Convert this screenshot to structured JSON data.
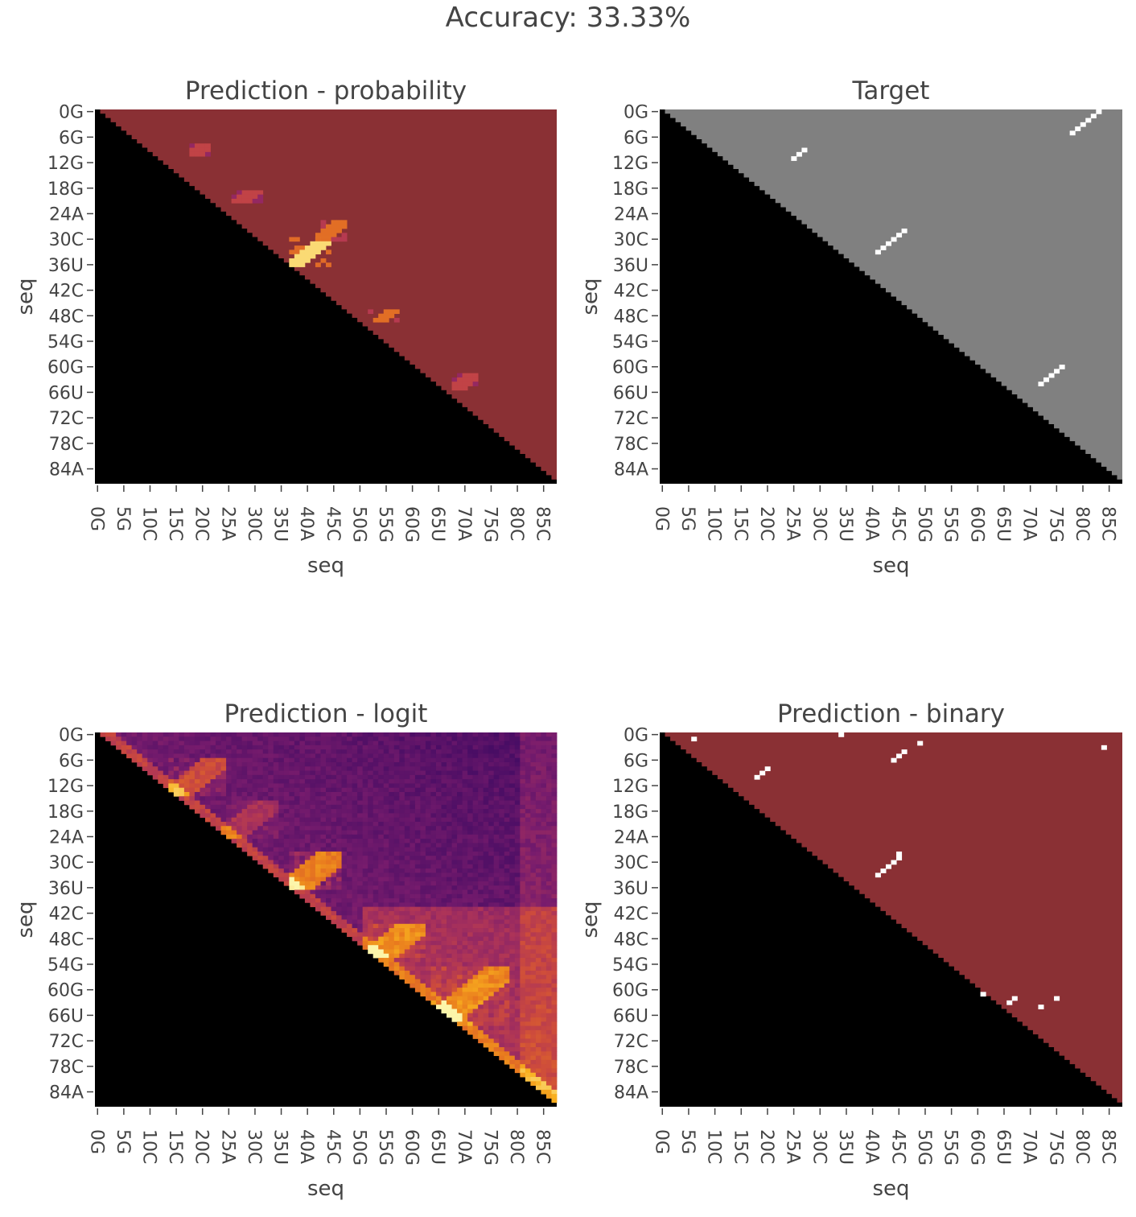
{
  "title": "Accuracy: 33.33%",
  "chart_data": [
    {
      "type": "heatmap",
      "title": "Prediction - probability",
      "xlabel": "seq",
      "ylabel": "seq",
      "matrix_size": 88,
      "lower_triangle": "masked (black)",
      "colorscale": "inferno-like (dark red background, yellow-white high values)",
      "background_color": "#8a3034",
      "x_ticks": [
        "0G",
        "5G",
        "10C",
        "15C",
        "20C",
        "25A",
        "30C",
        "35U",
        "40A",
        "45C",
        "50G",
        "55G",
        "60G",
        "65U",
        "70A",
        "75G",
        "80C",
        "85C"
      ],
      "y_ticks": [
        "0G",
        "6G",
        "12G",
        "18G",
        "24A",
        "30C",
        "36U",
        "42C",
        "48C",
        "54G",
        "60G",
        "66U",
        "72C",
        "78C",
        "84A"
      ],
      "highlights": [
        {
          "rows": [
            30,
            36
          ],
          "cols": [
            37,
            44
          ],
          "intensity": "high"
        },
        {
          "rows": [
            26,
            30
          ],
          "cols": [
            42,
            47
          ],
          "intensity": "medium"
        },
        {
          "rows": [
            47,
            49
          ],
          "cols": [
            52,
            58
          ],
          "intensity": "medium"
        },
        {
          "rows": [
            8,
            10
          ],
          "cols": [
            18,
            21
          ],
          "intensity": "low"
        },
        {
          "rows": [
            19,
            21
          ],
          "cols": [
            26,
            31
          ],
          "intensity": "low"
        },
        {
          "rows": [
            62,
            65
          ],
          "cols": [
            68,
            72
          ],
          "intensity": "low"
        }
      ]
    },
    {
      "type": "heatmap",
      "title": "Target",
      "xlabel": "seq",
      "ylabel": "seq",
      "matrix_size": 88,
      "lower_triangle": "masked (black)",
      "colorscale": "binary (grey background, white pairs)",
      "background_color": "#808080",
      "x_ticks": [
        "0G",
        "5G",
        "10C",
        "15C",
        "20C",
        "25A",
        "30C",
        "35U",
        "40A",
        "45C",
        "50G",
        "55G",
        "60G",
        "65U",
        "70A",
        "75G",
        "80C",
        "85C"
      ],
      "y_ticks": [
        "0G",
        "6G",
        "12G",
        "18G",
        "24A",
        "30C",
        "36U",
        "42C",
        "48C",
        "54G",
        "60G",
        "66U",
        "72C",
        "78C",
        "84A"
      ],
      "pairs": [
        [
          0,
          83
        ],
        [
          1,
          82
        ],
        [
          2,
          81
        ],
        [
          3,
          80
        ],
        [
          4,
          79
        ],
        [
          5,
          78
        ],
        [
          9,
          27
        ],
        [
          10,
          26
        ],
        [
          11,
          25
        ],
        [
          28,
          46
        ],
        [
          29,
          45
        ],
        [
          30,
          44
        ],
        [
          31,
          43
        ],
        [
          32,
          42
        ],
        [
          33,
          41
        ],
        [
          60,
          76
        ],
        [
          61,
          75
        ],
        [
          62,
          74
        ],
        [
          63,
          73
        ],
        [
          64,
          72
        ]
      ]
    },
    {
      "type": "heatmap",
      "title": "Prediction - logit",
      "xlabel": "seq",
      "ylabel": "seq",
      "matrix_size": 88,
      "lower_triangle": "masked (black)",
      "colorscale": "inferno-like (purple low, orange/yellow high)",
      "x_ticks": [
        "0G",
        "5G",
        "10C",
        "15C",
        "20C",
        "25A",
        "30C",
        "35U",
        "40A",
        "45C",
        "50G",
        "55G",
        "60G",
        "65U",
        "70A",
        "75G",
        "80C",
        "85C"
      ],
      "y_ticks": [
        "0G",
        "6G",
        "12G",
        "18G",
        "24A",
        "30C",
        "36U",
        "42C",
        "48C",
        "54G",
        "60G",
        "66U",
        "72C",
        "78C",
        "84A"
      ],
      "highlights": [
        {
          "rows": [
            28,
            36
          ],
          "cols": [
            37,
            46
          ],
          "intensity": "high"
        },
        {
          "rows": [
            45,
            52
          ],
          "cols": [
            52,
            62
          ],
          "intensity": "medium"
        },
        {
          "rows": [
            55,
            68
          ],
          "cols": [
            64,
            78
          ],
          "intensity": "medium"
        },
        {
          "rows": [
            6,
            14
          ],
          "cols": [
            14,
            24
          ],
          "intensity": "medium"
        },
        {
          "rows": [
            16,
            24
          ],
          "cols": [
            24,
            34
          ],
          "intensity": "low"
        }
      ]
    },
    {
      "type": "heatmap",
      "title": "Prediction - binary",
      "xlabel": "seq",
      "ylabel": "seq",
      "matrix_size": 88,
      "lower_triangle": "masked (black)",
      "colorscale": "binary (dark red background, white pairs)",
      "background_color": "#8a3034",
      "x_ticks": [
        "0G",
        "5G",
        "10C",
        "15C",
        "20C",
        "25A",
        "30C",
        "35U",
        "40A",
        "45C",
        "50G",
        "55G",
        "60G",
        "65U",
        "70A",
        "75G",
        "80C",
        "85C"
      ],
      "y_ticks": [
        "0G",
        "6G",
        "12G",
        "18G",
        "24A",
        "30C",
        "36U",
        "42C",
        "48C",
        "54G",
        "60G",
        "66U",
        "72C",
        "78C",
        "84A"
      ],
      "pairs": [
        [
          0,
          34
        ],
        [
          1,
          6
        ],
        [
          2,
          49
        ],
        [
          3,
          84
        ],
        [
          4,
          46
        ],
        [
          5,
          45
        ],
        [
          6,
          44
        ],
        [
          8,
          20
        ],
        [
          9,
          19
        ],
        [
          10,
          18
        ],
        [
          28,
          45
        ],
        [
          29,
          45
        ],
        [
          30,
          44
        ],
        [
          31,
          43
        ],
        [
          32,
          42
        ],
        [
          33,
          41
        ],
        [
          61,
          61
        ],
        [
          62,
          67
        ],
        [
          63,
          66
        ],
        [
          64,
          72
        ],
        [
          62,
          75
        ]
      ]
    }
  ]
}
